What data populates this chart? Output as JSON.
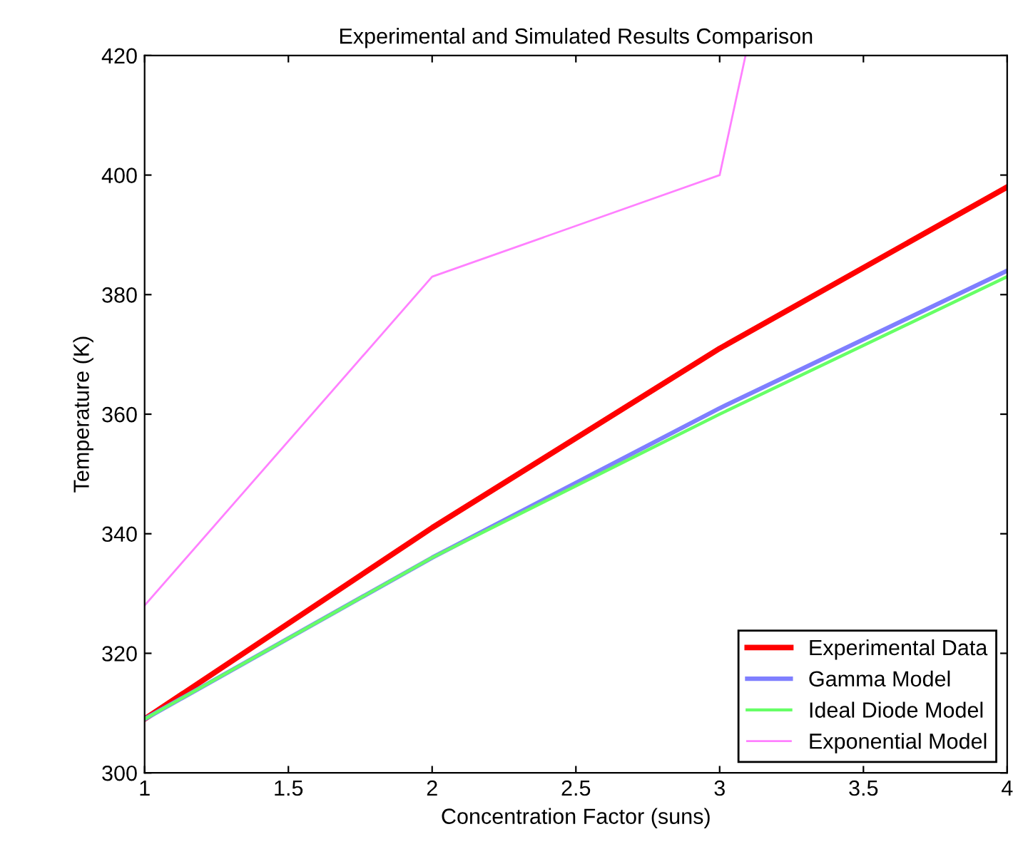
{
  "chart_data": {
    "type": "line",
    "title": "Experimental and Simulated Results Comparison",
    "xlabel": "Concentration Factor (suns)",
    "ylabel": "Temperature (K)",
    "x": [
      1,
      2,
      3,
      4
    ],
    "series": [
      {
        "name": "Experimental Data",
        "color": "#ff0000",
        "values": [
          309,
          341,
          371,
          398
        ]
      },
      {
        "name": "Gamma Model",
        "color": "#7f7fff",
        "values": [
          309,
          336,
          361,
          384
        ]
      },
      {
        "name": "Ideal Diode Model",
        "color": "#66ff66",
        "values": [
          309,
          336,
          360,
          383
        ]
      },
      {
        "name": "Exponential Model",
        "color": "#ff80ff",
        "x": [
          1,
          2,
          3,
          3.09
        ],
        "values": [
          328,
          383,
          400,
          420
        ]
      }
    ],
    "xlim": [
      1,
      4
    ],
    "xticks": [
      1,
      1.5,
      2,
      2.5,
      3,
      3.5,
      4
    ],
    "ylim": [
      300,
      420
    ],
    "yticks": [
      300,
      320,
      340,
      360,
      380,
      400,
      420
    ],
    "grid": false,
    "legend": "bottom right",
    "marker": "none",
    "line_style": "solid"
  }
}
